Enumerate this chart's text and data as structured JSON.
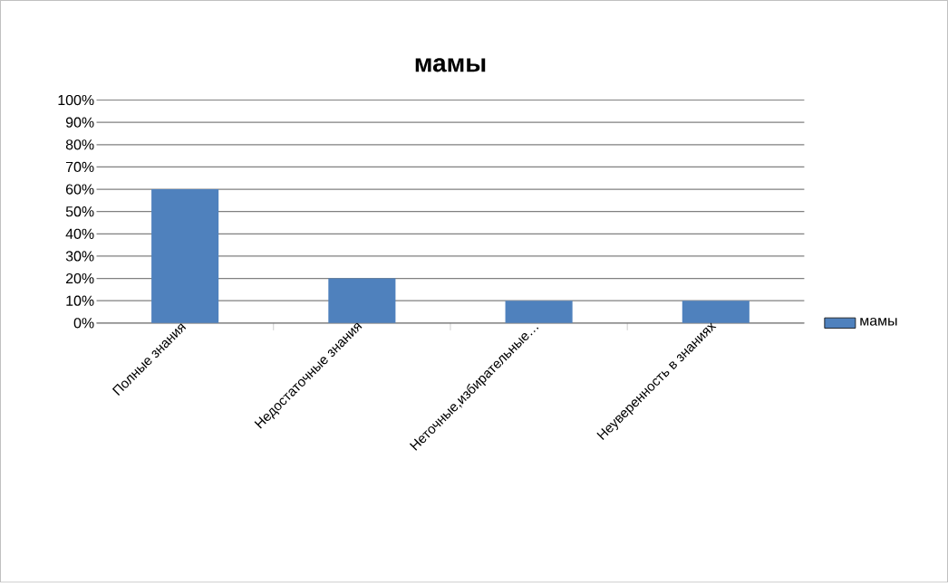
{
  "chart_data": {
    "type": "bar",
    "title": "мамы",
    "categories": [
      "Полные знания",
      "Недостаточные знания",
      "Неточные,избирательные…",
      "Неуверенность в знаниях"
    ],
    "series": [
      {
        "name": "мамы",
        "color": "#4f81bd",
        "values": [
          60,
          20,
          10,
          10
        ]
      }
    ],
    "ylim": [
      0,
      100
    ],
    "yticks": [
      {
        "value": 0,
        "label": "0%"
      },
      {
        "value": 10,
        "label": "10%"
      },
      {
        "value": 20,
        "label": "20%"
      },
      {
        "value": 30,
        "label": "30%"
      },
      {
        "value": 40,
        "label": "40%"
      },
      {
        "value": 50,
        "label": "50%"
      },
      {
        "value": 60,
        "label": "60%"
      },
      {
        "value": 70,
        "label": "70%"
      },
      {
        "value": 80,
        "label": "80%"
      },
      {
        "value": 90,
        "label": "90%"
      },
      {
        "value": 100,
        "label": "100%"
      }
    ],
    "grid": "y",
    "legend": "right"
  }
}
